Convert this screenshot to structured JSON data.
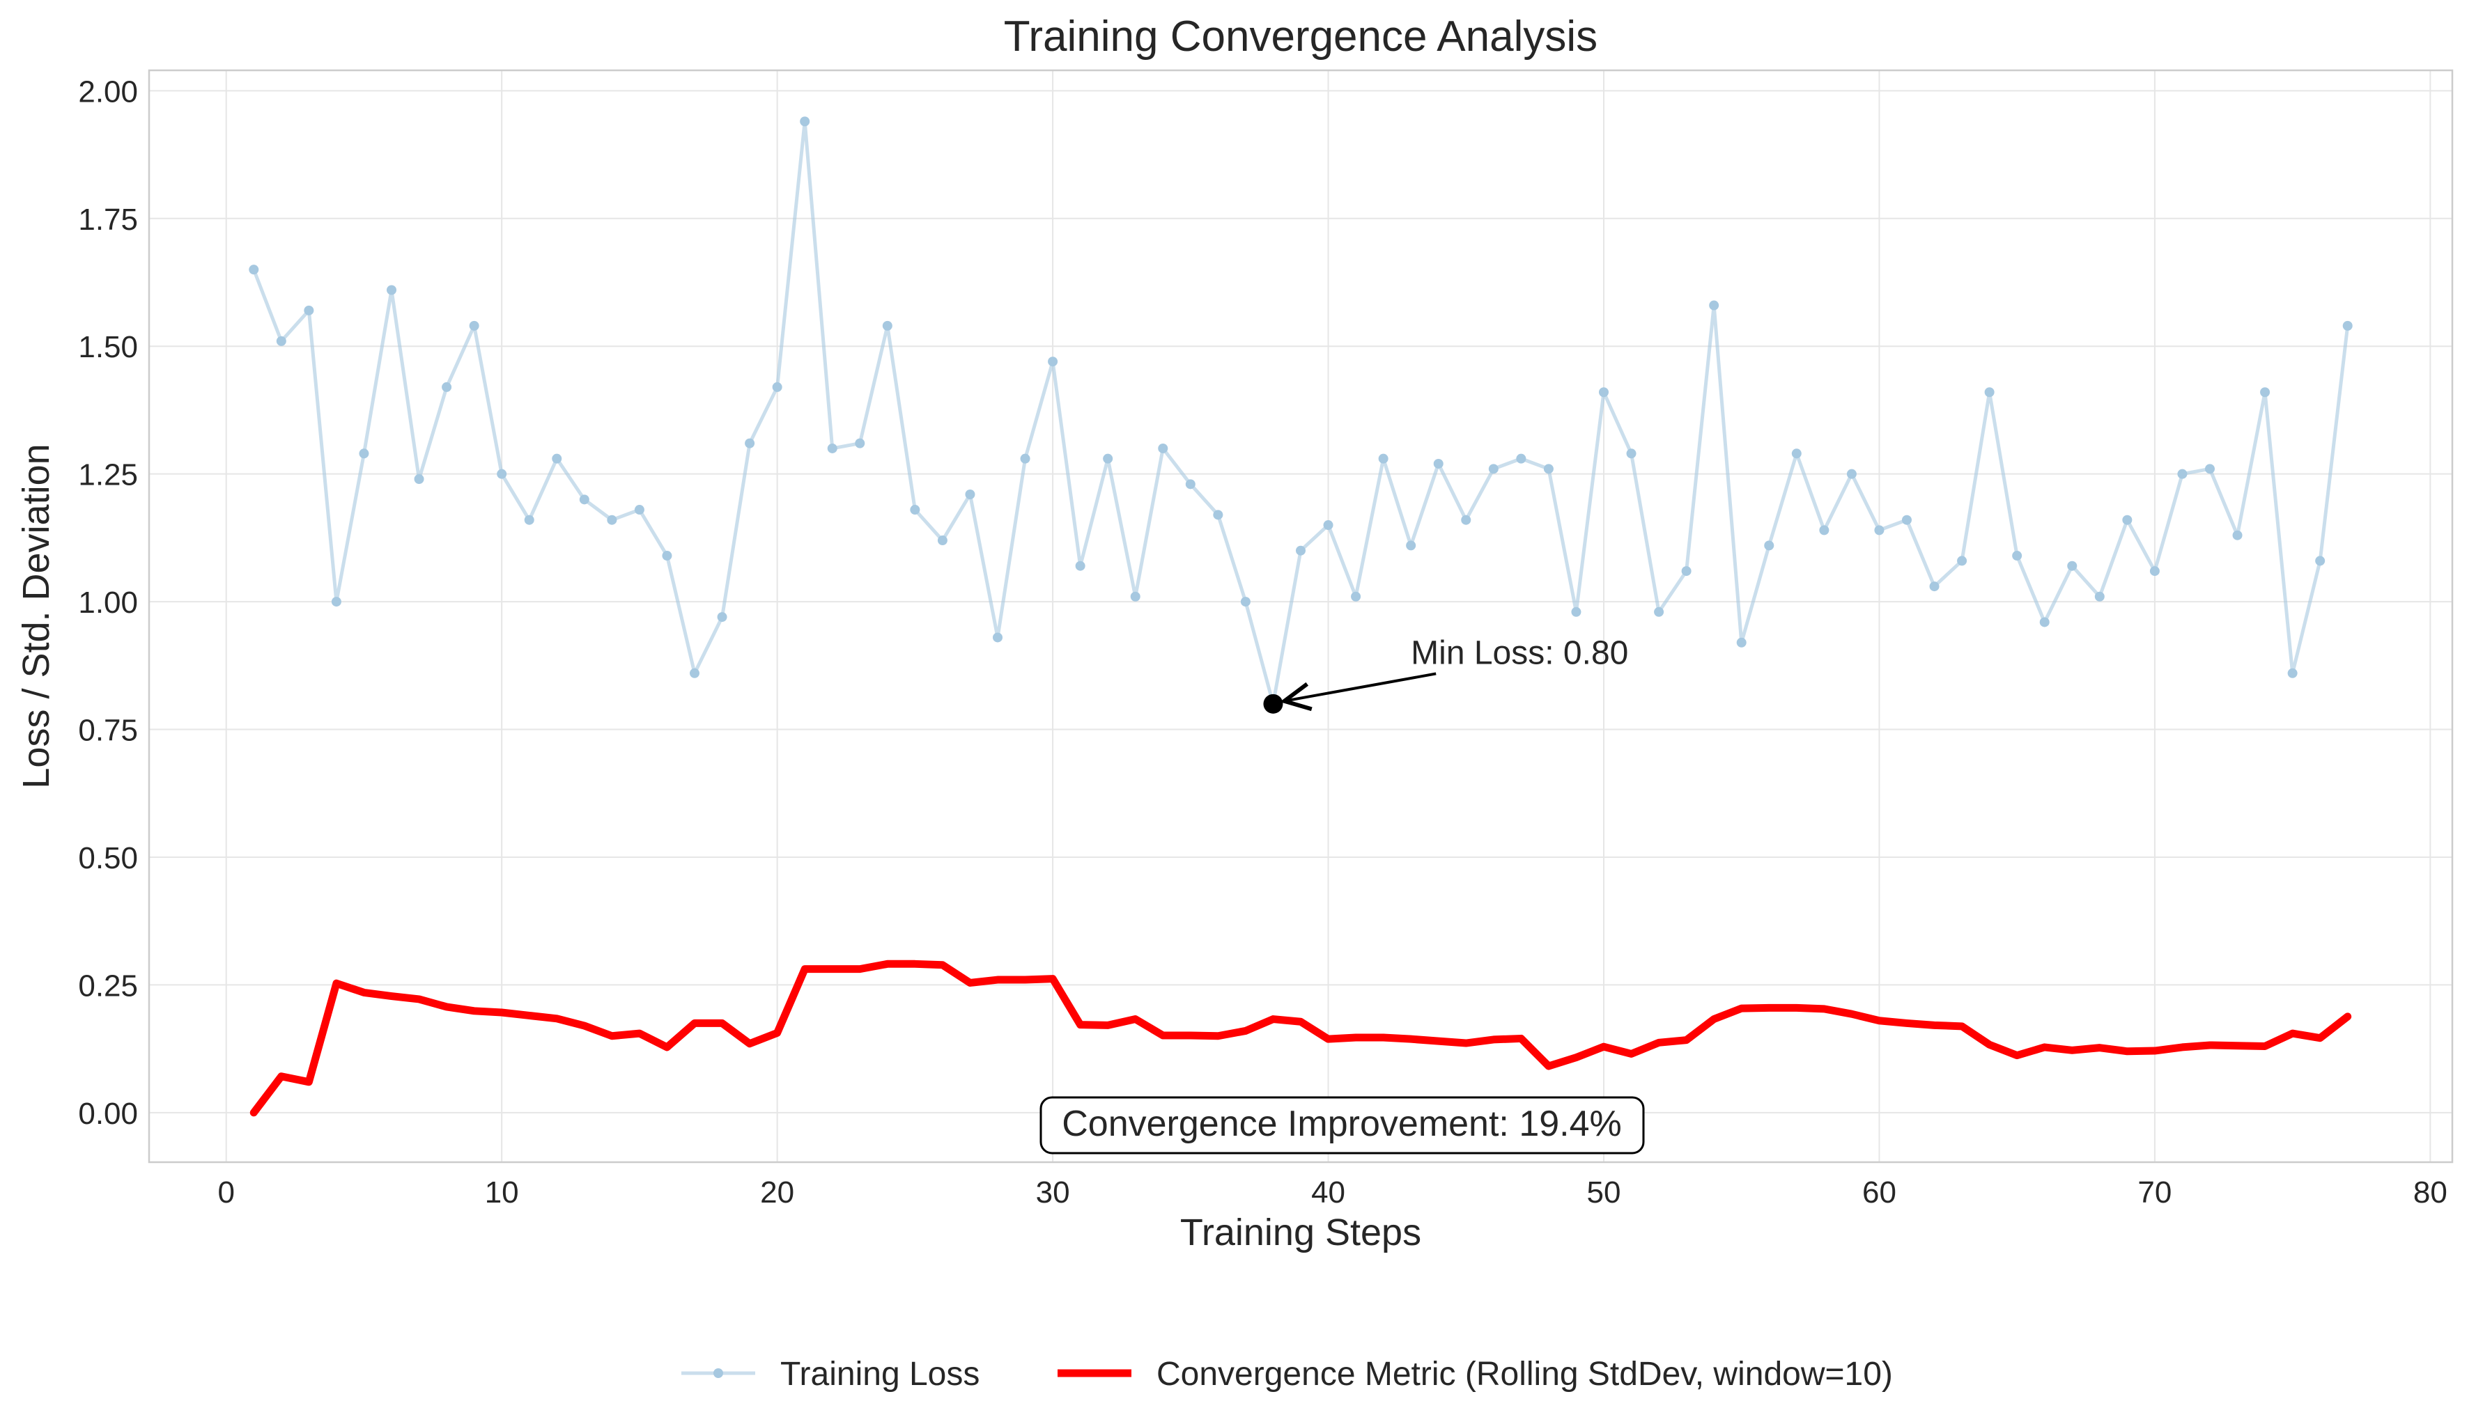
{
  "chart_data": {
    "type": "line",
    "title": "Training Convergence Analysis",
    "xlabel": "Training Steps",
    "ylabel": "Loss / Std. Deviation",
    "xlim": [
      -2.8,
      80.8
    ],
    "ylim": [
      -0.097,
      2.04
    ],
    "xticks": [
      0,
      10,
      20,
      30,
      40,
      50,
      60,
      70,
      80
    ],
    "yticks": [
      0.0,
      0.25,
      0.5,
      0.75,
      1.0,
      1.25,
      1.5,
      1.75,
      2.0
    ],
    "grid": true,
    "legend_position": "bottom-center",
    "series": [
      {
        "name": "Training Loss",
        "color": "#a6c8e0",
        "x": [
          1,
          2,
          3,
          4,
          5,
          6,
          7,
          8,
          9,
          10,
          11,
          12,
          13,
          14,
          15,
          16,
          17,
          18,
          19,
          20,
          21,
          22,
          23,
          24,
          25,
          26,
          27,
          28,
          29,
          30,
          31,
          32,
          33,
          34,
          35,
          36,
          37,
          38,
          39,
          40,
          41,
          42,
          43,
          44,
          45,
          46,
          47,
          48,
          49,
          50,
          51,
          52,
          53,
          54,
          55,
          56,
          57,
          58,
          59,
          60,
          61,
          62,
          63,
          64,
          65,
          66,
          67,
          68,
          69,
          70,
          71,
          72,
          73,
          74,
          75,
          76,
          77
        ],
        "values": [
          1.65,
          1.51,
          1.57,
          1.0,
          1.29,
          1.61,
          1.24,
          1.42,
          1.54,
          1.25,
          1.16,
          1.28,
          1.2,
          1.16,
          1.18,
          1.09,
          0.86,
          0.97,
          1.31,
          1.42,
          1.94,
          1.3,
          1.31,
          1.54,
          1.18,
          1.12,
          1.21,
          0.93,
          1.28,
          1.47,
          1.07,
          1.28,
          1.01,
          1.3,
          1.23,
          1.17,
          1.0,
          0.8,
          1.1,
          1.15,
          1.01,
          1.28,
          1.11,
          1.27,
          1.16,
          1.26,
          1.28,
          1.26,
          0.98,
          1.41,
          1.29,
          0.98,
          1.06,
          1.58,
          0.92,
          1.11,
          1.29,
          1.14,
          1.25,
          1.14,
          1.16,
          1.03,
          1.08,
          1.41,
          1.09,
          0.96,
          1.07,
          1.01,
          1.16,
          1.06,
          1.25,
          1.26,
          1.13,
          1.41,
          0.86,
          1.08,
          1.54
        ]
      },
      {
        "name": "Convergence Metric (Rolling StdDev, window=10)",
        "color": "#ff0000",
        "x": [
          1,
          2,
          3,
          4,
          5,
          6,
          7,
          8,
          9,
          10,
          11,
          12,
          13,
          14,
          15,
          16,
          17,
          18,
          19,
          20,
          21,
          22,
          23,
          24,
          25,
          26,
          27,
          28,
          29,
          30,
          31,
          32,
          33,
          34,
          35,
          36,
          37,
          38,
          39,
          40,
          41,
          42,
          43,
          44,
          45,
          46,
          47,
          48,
          49,
          50,
          51,
          52,
          53,
          54,
          55,
          56,
          57,
          58,
          59,
          60,
          61,
          62,
          63,
          64,
          65,
          66,
          67,
          68,
          69,
          70,
          71,
          72,
          73,
          74,
          75,
          76,
          77
        ],
        "values": [
          0.0,
          0.071,
          0.06,
          0.253,
          0.235,
          0.228,
          0.222,
          0.207,
          0.199,
          0.196,
          0.19,
          0.184,
          0.17,
          0.15,
          0.155,
          0.128,
          0.175,
          0.175,
          0.135,
          0.156,
          0.281,
          0.281,
          0.281,
          0.291,
          0.291,
          0.289,
          0.254,
          0.26,
          0.26,
          0.262,
          0.172,
          0.171,
          0.183,
          0.151,
          0.151,
          0.15,
          0.16,
          0.183,
          0.178,
          0.144,
          0.147,
          0.147,
          0.144,
          0.14,
          0.136,
          0.143,
          0.145,
          0.091,
          0.108,
          0.129,
          0.115,
          0.137,
          0.142,
          0.183,
          0.204,
          0.205,
          0.205,
          0.203,
          0.193,
          0.18,
          0.175,
          0.171,
          0.169,
          0.133,
          0.112,
          0.128,
          0.122,
          0.127,
          0.12,
          0.121,
          0.128,
          0.132,
          0.131,
          0.13,
          0.155,
          0.146,
          0.188
        ]
      }
    ],
    "annotations": [
      {
        "text": "Min Loss: 0.80",
        "x": 38,
        "y": 0.8,
        "text_x": 43,
        "text_y": 0.9
      },
      {
        "text": "Convergence Improvement: 19.4%",
        "x": 40,
        "y": -0.02
      }
    ]
  }
}
